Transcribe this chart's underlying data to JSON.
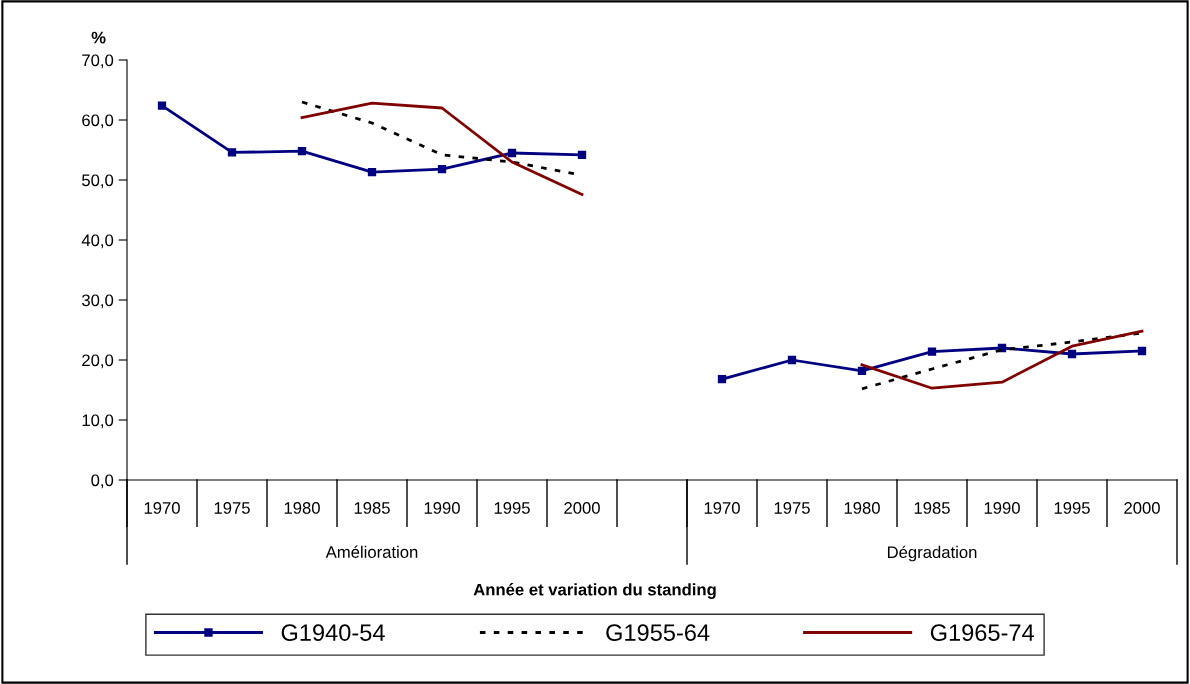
{
  "chart_data": {
    "type": "line",
    "ylabel": "%",
    "xlabel": "Année et variation du standing",
    "categories": [
      "1970",
      "1975",
      "1980",
      "1985",
      "1990",
      "1995",
      "2000",
      null,
      "1970",
      "1975",
      "1980",
      "1985",
      "1990",
      "1995",
      "2000"
    ],
    "annotations": [
      "Amélioration",
      "Dégradation"
    ],
    "ylim": [
      0,
      70
    ],
    "yticks": [
      {
        "value": 0,
        "label": "0,0"
      },
      {
        "value": 10,
        "label": "10,0"
      },
      {
        "value": 20,
        "label": "20,0"
      },
      {
        "value": 30,
        "label": "30,0"
      },
      {
        "value": 40,
        "label": "40,0"
      },
      {
        "value": 50,
        "label": "50,0"
      },
      {
        "value": 60,
        "label": "60,0"
      },
      {
        "value": 70,
        "label": "70,0"
      }
    ],
    "grid": false,
    "legend": "bottom",
    "series": [
      {
        "name": "G1940-54",
        "color": "#000080",
        "marker": "square",
        "line_style": "solid",
        "values": [
          62.4,
          54.6,
          54.8,
          51.3,
          51.8,
          54.5,
          54.2,
          null,
          16.8,
          20.0,
          18.2,
          21.4,
          22.0,
          21.0,
          21.5
        ]
      },
      {
        "name": "G1955-64",
        "color": "#000000",
        "marker": "none",
        "line_style": "dotted",
        "values": [
          null,
          null,
          63.0,
          59.5,
          54.2,
          53.0,
          50.8,
          null,
          null,
          null,
          15.2,
          18.5,
          21.7,
          23.0,
          24.5
        ]
      },
      {
        "name": "G1965-74",
        "color": "#800000",
        "marker": "none",
        "line_style": "solid",
        "values": [
          null,
          null,
          60.4,
          62.8,
          62.0,
          53.0,
          47.6,
          null,
          null,
          null,
          19.2,
          15.3,
          16.3,
          22.3,
          24.8
        ]
      }
    ]
  }
}
